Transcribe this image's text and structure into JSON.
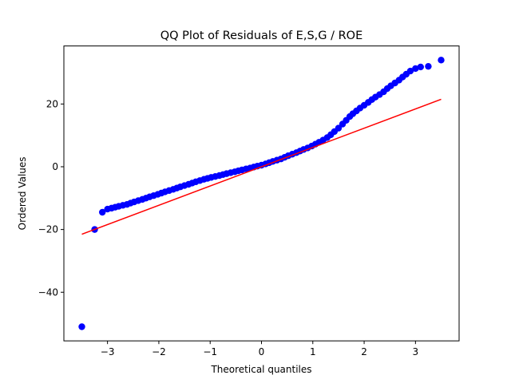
{
  "chart_data": {
    "type": "scatter",
    "title": "QQ Plot of Residuals of E,S,G / ROE",
    "xlabel": "Theoretical quantiles",
    "ylabel": "Ordered Values",
    "xlim": [
      -3.85,
      3.85
    ],
    "ylim": [
      -55.5,
      38.5
    ],
    "xticks": [
      -3,
      -2,
      -1,
      0,
      1,
      2,
      3
    ],
    "yticks": [
      -40,
      -20,
      0,
      20
    ],
    "xtick_labels": [
      "−3",
      "−2",
      "−1",
      "0",
      "1",
      "2",
      "3"
    ],
    "ytick_labels": [
      "−40",
      "−20",
      "0",
      "20"
    ],
    "grid": false,
    "legend": "none",
    "colors": {
      "points": "#0000ff",
      "fit_line": "#ff0000"
    },
    "fit_line": {
      "x": [
        -3.5,
        3.5
      ],
      "y": [
        -21.5,
        21.5
      ]
    },
    "series": [
      {
        "x": [
          -3.5,
          -3.25,
          -3.1,
          -3.0,
          -2.92,
          -2.85,
          -2.78,
          -2.7,
          -2.62,
          -2.55,
          -2.48,
          -2.4,
          -2.32,
          -2.25,
          -2.18,
          -2.1,
          -2.02,
          -1.95,
          -1.88,
          -1.8,
          -1.72,
          -1.65,
          -1.58,
          -1.5,
          -1.42,
          -1.35,
          -1.28,
          -1.2,
          -1.12,
          -1.05,
          -0.98,
          -0.9,
          -0.82,
          -0.75,
          -0.68,
          -0.6,
          -0.52,
          -0.45,
          -0.38,
          -0.3,
          -0.22,
          -0.15,
          -0.08,
          0.0,
          0.08,
          0.15,
          0.22,
          0.3,
          0.38,
          0.45,
          0.52,
          0.6,
          0.68,
          0.75,
          0.82,
          0.9,
          0.98,
          1.05,
          1.12,
          1.2,
          1.28,
          1.35,
          1.42,
          1.5,
          1.58,
          1.65,
          1.72,
          1.78,
          1.85,
          1.92,
          2.0,
          2.08,
          2.15,
          2.22,
          2.3,
          2.38,
          2.45,
          2.52,
          2.6,
          2.68,
          2.75,
          2.82,
          2.9,
          3.0,
          3.1,
          3.25,
          3.5
        ],
        "y": [
          -51,
          -20,
          -14.5,
          -13.5,
          -13.2,
          -12.9,
          -12.6,
          -12.3,
          -12.0,
          -11.6,
          -11.2,
          -10.8,
          -10.4,
          -10.0,
          -9.6,
          -9.2,
          -8.8,
          -8.4,
          -8.0,
          -7.6,
          -7.2,
          -6.8,
          -6.4,
          -6.0,
          -5.6,
          -5.2,
          -4.8,
          -4.4,
          -4.0,
          -3.7,
          -3.4,
          -3.1,
          -2.8,
          -2.5,
          -2.2,
          -1.9,
          -1.6,
          -1.3,
          -1.0,
          -0.7,
          -0.4,
          -0.1,
          0.2,
          0.5,
          0.9,
          1.3,
          1.7,
          2.1,
          2.5,
          3.0,
          3.5,
          4.0,
          4.5,
          5.0,
          5.5,
          6.0,
          6.6,
          7.2,
          7.8,
          8.5,
          9.3,
          10.2,
          11.2,
          12.3,
          13.6,
          14.8,
          16.0,
          16.9,
          17.8,
          18.7,
          19.6,
          20.5,
          21.4,
          22.2,
          23.0,
          23.9,
          24.9,
          25.8,
          26.7,
          27.6,
          28.6,
          29.5,
          30.5,
          31.3,
          31.8,
          32.0,
          34.0
        ]
      }
    ]
  }
}
